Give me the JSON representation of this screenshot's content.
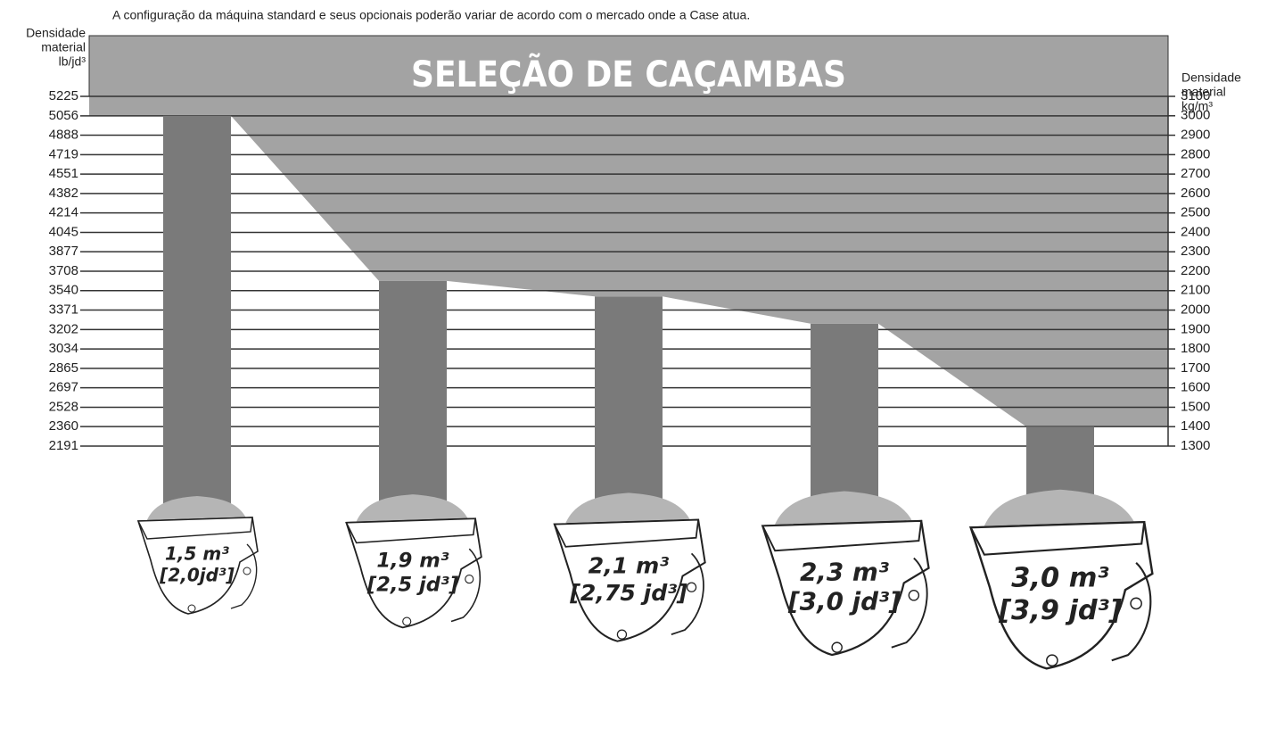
{
  "chart_data": {
    "type": "bar",
    "title": "SELEÇÃO DE CAÇAMBAS",
    "subtitle": "A configuração da máquina standard e seus opcionais poderão variar de acordo com o mercado onde a Case atua.",
    "y_label": [
      "Densidade",
      "material",
      "lb/jd³"
    ],
    "y2_label": [
      "Densidade",
      "material",
      "kg/m³"
    ],
    "categories": [
      "1,5 m³",
      "1,9 m³",
      "2,1 m³",
      "2,3 m³",
      "3,0 m³"
    ],
    "category_capacities": [
      "[2,0jd³]",
      "[2,5 jd³]",
      "[2,75 jd³]",
      "[3,0 jd³]",
      "[3,9 jd³]"
    ],
    "series": [
      {
        "color": "#7a7a7a",
        "axis": "y2",
        "values": [
          3000,
          2150,
          2070,
          1930,
          1400
        ]
      }
    ],
    "ylim": [
      2191,
      5225
    ],
    "yticks": [
      5225,
      5056,
      4888,
      4719,
      4551,
      4382,
      4214,
      4045,
      3877,
      3708,
      3540,
      3371,
      3202,
      3034,
      2865,
      2697,
      2528,
      2360,
      2191
    ],
    "y2lim": [
      1300,
      3100
    ],
    "y2ticks": [
      3100,
      3000,
      2900,
      2800,
      2700,
      2600,
      2500,
      2400,
      2300,
      2200,
      2100,
      2000,
      1900,
      1800,
      1700,
      1600,
      1500,
      1400,
      1300
    ],
    "grid": true
  }
}
